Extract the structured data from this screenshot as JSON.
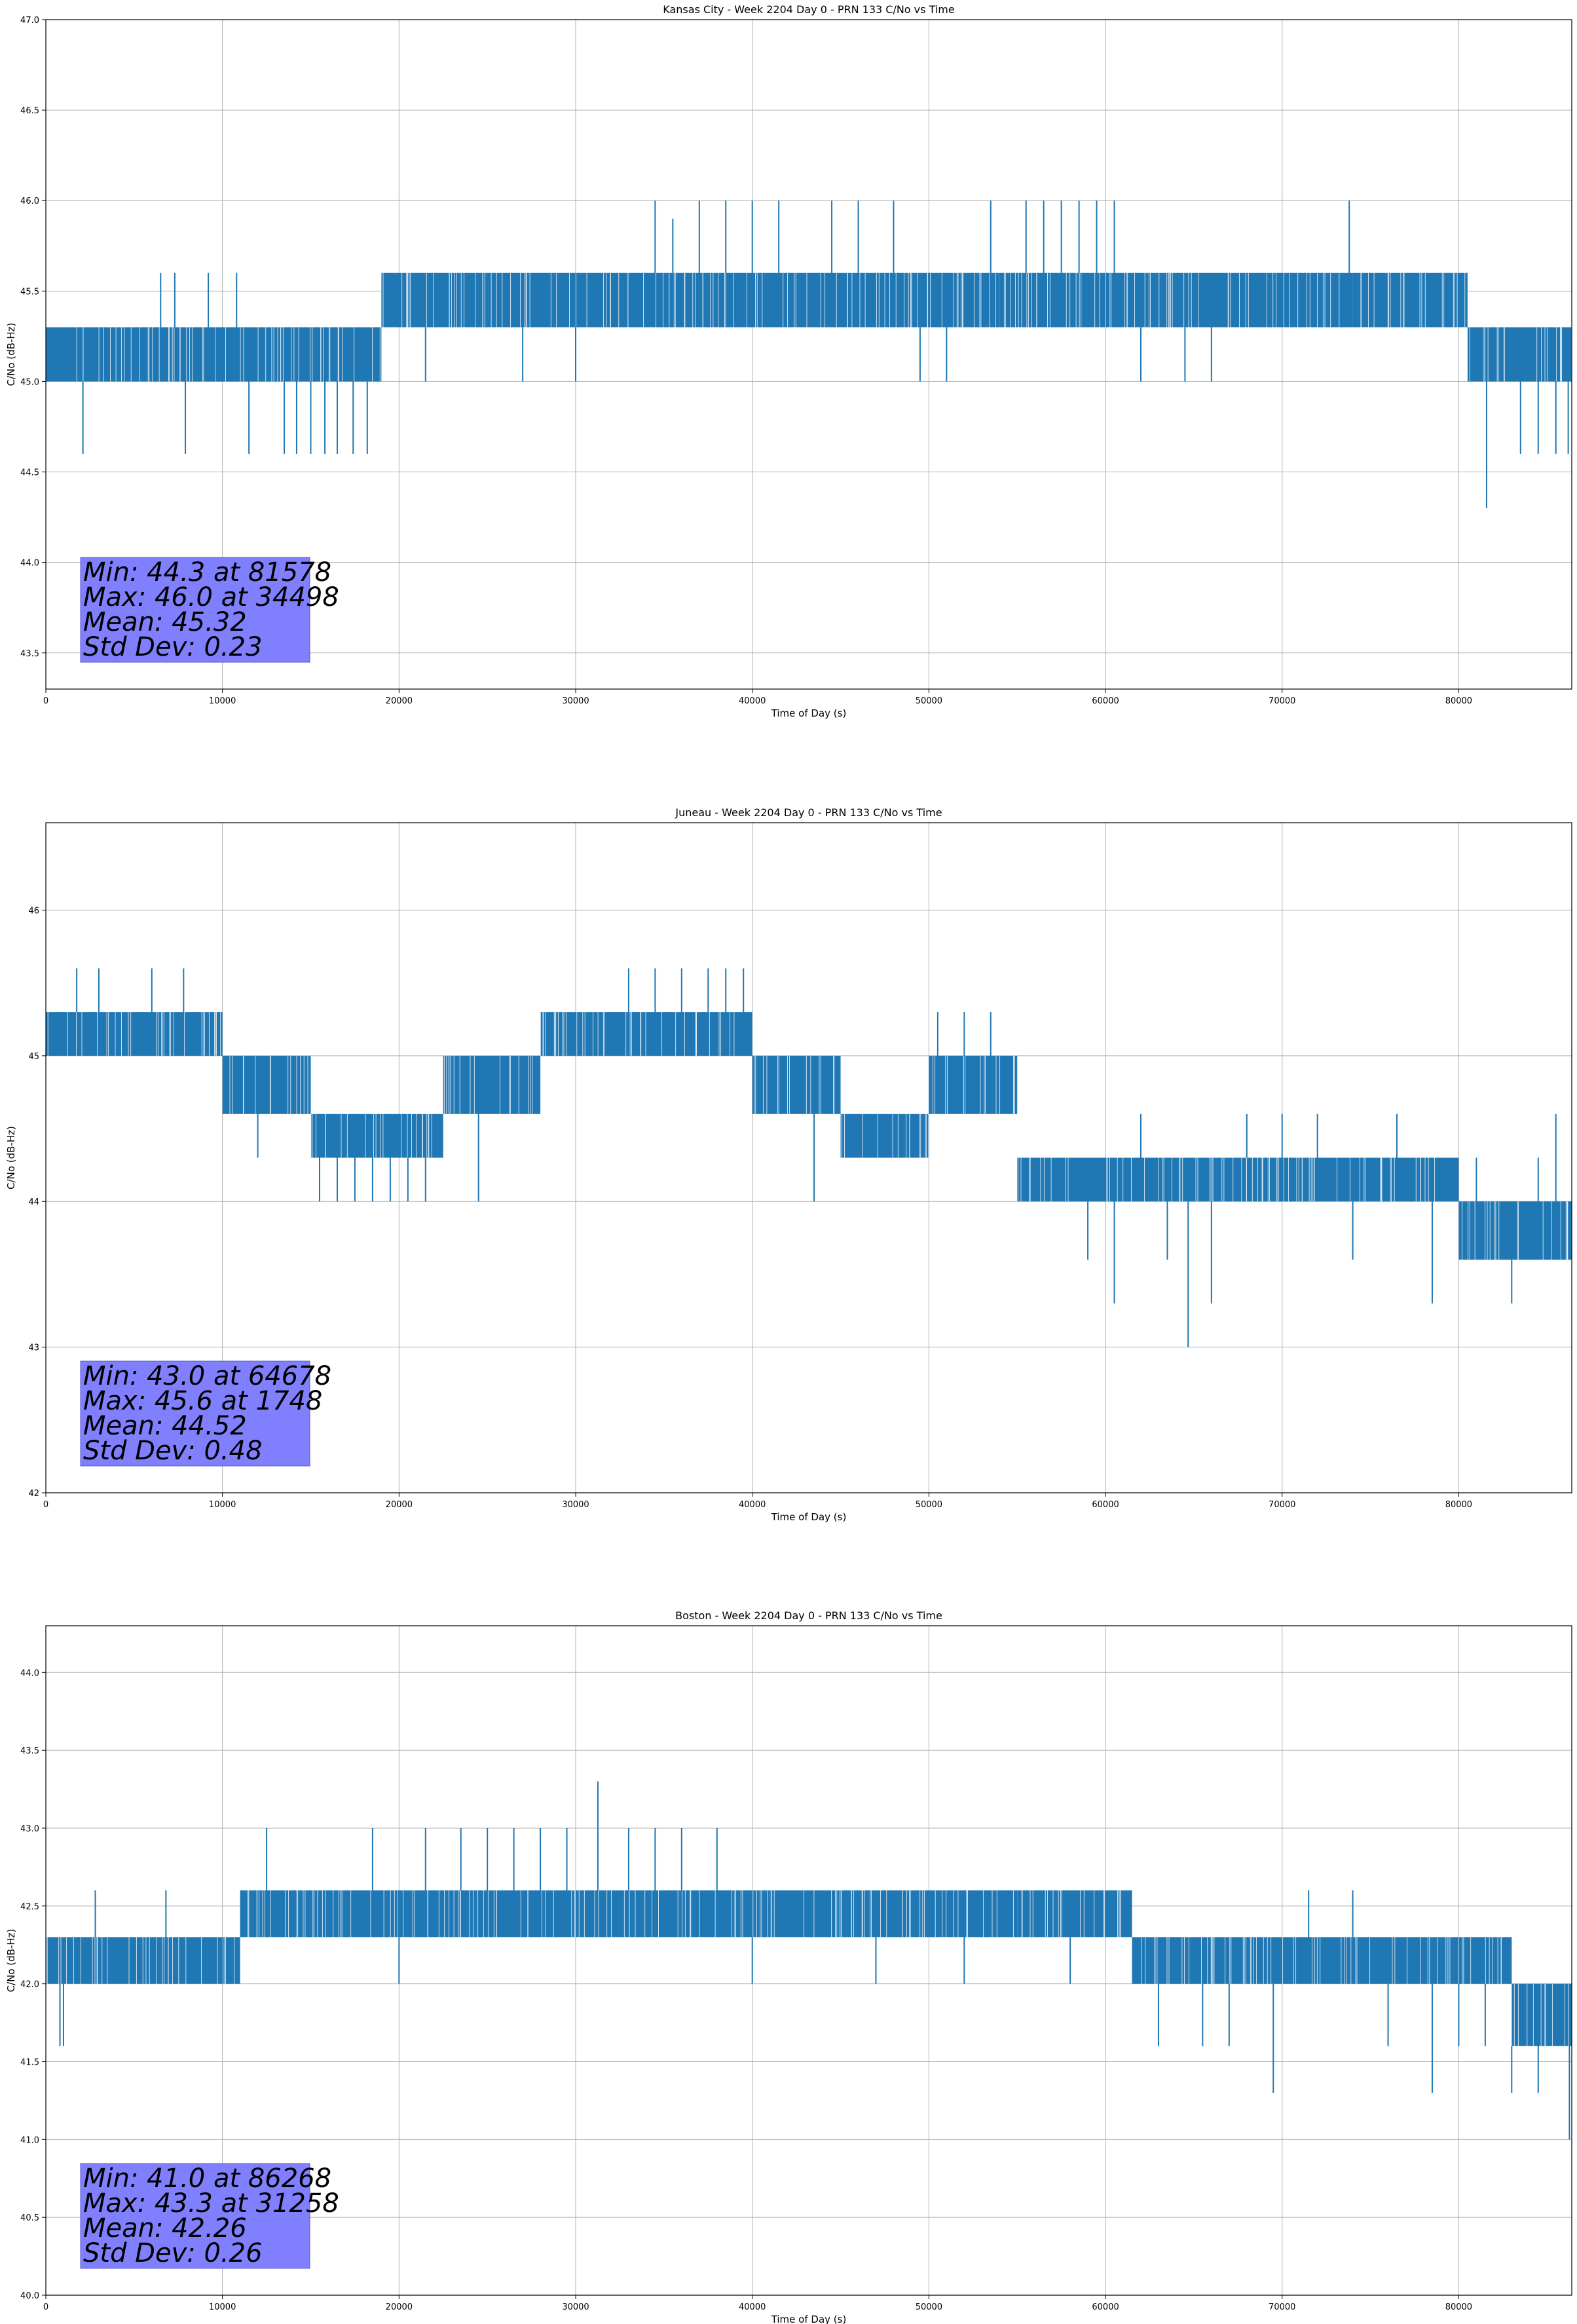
{
  "chart_data": [
    {
      "type": "line",
      "title": "Kansas City - Week 2204 Day 0 - PRN 133 C/No vs Time",
      "xlabel": "Time of Day (s)",
      "ylabel": "C/No (dB-Hz)",
      "xlim": [
        0,
        86400
      ],
      "ylim": [
        43.3,
        47.0
      ],
      "xticks": [
        0,
        10000,
        20000,
        30000,
        40000,
        50000,
        60000,
        70000,
        80000
      ],
      "yticks": [
        43.5,
        44.0,
        44.5,
        45.0,
        45.5,
        46.0,
        46.5,
        47.0
      ],
      "ytick_decimals": 1,
      "grid": true,
      "series": [
        {
          "color": "#1f77b4",
          "segments": [
            {
              "start": 0,
              "end": 19000,
              "lo": 45.0,
              "hi": 45.3
            },
            {
              "start": 19000,
              "end": 31000,
              "lo": 45.3,
              "hi": 45.6
            },
            {
              "start": 31000,
              "end": 54000,
              "lo": 45.3,
              "hi": 45.6
            },
            {
              "start": 54000,
              "end": 74000,
              "lo": 45.3,
              "hi": 45.6
            },
            {
              "start": 74000,
              "end": 80500,
              "lo": 45.3,
              "hi": 45.6
            },
            {
              "start": 80500,
              "end": 86400,
              "lo": 45.0,
              "hi": 45.3
            }
          ],
          "spikes": [
            [
              2100,
              44.6
            ],
            [
              6500,
              45.6
            ],
            [
              7300,
              45.6
            ],
            [
              7900,
              44.6
            ],
            [
              9200,
              45.6
            ],
            [
              10800,
              45.6
            ],
            [
              11500,
              44.6
            ],
            [
              13500,
              44.6
            ],
            [
              14200,
              44.6
            ],
            [
              15000,
              44.6
            ],
            [
              15800,
              44.6
            ],
            [
              16500,
              44.6
            ],
            [
              17400,
              44.6
            ],
            [
              18200,
              44.6
            ],
            [
              19500,
              45.6
            ],
            [
              21500,
              45.0
            ],
            [
              27000,
              45.0
            ],
            [
              30000,
              45.0
            ],
            [
              34498,
              46.0
            ],
            [
              35500,
              45.9
            ],
            [
              37000,
              46.0
            ],
            [
              38500,
              46.0
            ],
            [
              40000,
              46.0
            ],
            [
              41500,
              46.0
            ],
            [
              44500,
              46.0
            ],
            [
              46000,
              46.0
            ],
            [
              48000,
              46.0
            ],
            [
              49500,
              45.0
            ],
            [
              51000,
              45.0
            ],
            [
              53500,
              46.0
            ],
            [
              55500,
              46.0
            ],
            [
              56500,
              46.0
            ],
            [
              57500,
              46.0
            ],
            [
              58500,
              46.0
            ],
            [
              59500,
              46.0
            ],
            [
              60500,
              46.0
            ],
            [
              62000,
              45.0
            ],
            [
              64500,
              45.0
            ],
            [
              66000,
              45.0
            ],
            [
              73800,
              46.0
            ],
            [
              78500,
              45.6
            ],
            [
              81578,
              44.3
            ],
            [
              83500,
              44.6
            ],
            [
              84500,
              44.6
            ],
            [
              85500,
              44.6
            ],
            [
              86200,
              44.6
            ]
          ]
        }
      ],
      "stats": [
        "Min: 44.3 at 81578",
        "Max: 46.0 at 34498",
        "Mean: 45.32",
        "Std Dev: 0.23"
      ],
      "stats_box_color": "#8080ff"
    },
    {
      "type": "line",
      "title": "Juneau - Week 2204 Day 0 - PRN 133 C/No vs Time",
      "xlabel": "Time of Day (s)",
      "ylabel": "C/No (dB-Hz)",
      "xlim": [
        0,
        86400
      ],
      "ylim": [
        42.0,
        46.6
      ],
      "xticks": [
        0,
        10000,
        20000,
        30000,
        40000,
        50000,
        60000,
        70000,
        80000
      ],
      "yticks": [
        42,
        43,
        44,
        45,
        46
      ],
      "ytick_decimals": 0,
      "grid": true,
      "series": [
        {
          "color": "#1f77b4",
          "segments": [
            {
              "start": 0,
              "end": 10000,
              "lo": 45.0,
              "hi": 45.3
            },
            {
              "start": 10000,
              "end": 15000,
              "lo": 44.6,
              "hi": 45.0
            },
            {
              "start": 15000,
              "end": 22500,
              "lo": 44.3,
              "hi": 44.6
            },
            {
              "start": 22500,
              "end": 28000,
              "lo": 44.6,
              "hi": 45.0
            },
            {
              "start": 28000,
              "end": 40000,
              "lo": 45.0,
              "hi": 45.3
            },
            {
              "start": 40000,
              "end": 45000,
              "lo": 44.6,
              "hi": 45.0
            },
            {
              "start": 45000,
              "end": 50000,
              "lo": 44.3,
              "hi": 44.6
            },
            {
              "start": 50000,
              "end": 55000,
              "lo": 44.6,
              "hi": 45.0
            },
            {
              "start": 55000,
              "end": 80000,
              "lo": 44.0,
              "hi": 44.3
            },
            {
              "start": 80000,
              "end": 86400,
              "lo": 43.6,
              "hi": 44.0
            }
          ],
          "spikes": [
            [
              1748,
              45.6
            ],
            [
              3000,
              45.6
            ],
            [
              6000,
              45.6
            ],
            [
              7800,
              45.6
            ],
            [
              12000,
              44.3
            ],
            [
              15500,
              44.0
            ],
            [
              16500,
              44.0
            ],
            [
              17500,
              44.0
            ],
            [
              18500,
              44.0
            ],
            [
              19500,
              44.0
            ],
            [
              20500,
              44.0
            ],
            [
              21500,
              44.0
            ],
            [
              24500,
              44.0
            ],
            [
              33000,
              45.6
            ],
            [
              34500,
              45.6
            ],
            [
              36000,
              45.6
            ],
            [
              37500,
              45.6
            ],
            [
              38500,
              45.6
            ],
            [
              39500,
              45.6
            ],
            [
              43500,
              44.0
            ],
            [
              50500,
              45.3
            ],
            [
              52000,
              45.3
            ],
            [
              53500,
              45.3
            ],
            [
              59000,
              43.6
            ],
            [
              60500,
              43.3
            ],
            [
              62000,
              44.6
            ],
            [
              63500,
              43.6
            ],
            [
              64678,
              43.0
            ],
            [
              66000,
              43.3
            ],
            [
              68000,
              44.6
            ],
            [
              70000,
              44.6
            ],
            [
              72000,
              44.6
            ],
            [
              74000,
              43.6
            ],
            [
              76500,
              44.6
            ],
            [
              78500,
              43.3
            ],
            [
              81000,
              44.3
            ],
            [
              83000,
              43.3
            ],
            [
              84500,
              44.3
            ],
            [
              85500,
              44.6
            ]
          ]
        }
      ],
      "stats": [
        "Min: 43.0 at 64678",
        "Max: 45.6 at 1748",
        "Mean: 44.52",
        "Std Dev: 0.48"
      ],
      "stats_box_color": "#8080ff"
    },
    {
      "type": "line",
      "title": "Boston - Week 2204 Day 0 - PRN 133 C/No vs Time",
      "xlabel": "Time of Day (s)",
      "ylabel": "C/No (dB-Hz)",
      "xlim": [
        0,
        86400
      ],
      "ylim": [
        40.0,
        44.3
      ],
      "xticks": [
        0,
        10000,
        20000,
        30000,
        40000,
        50000,
        60000,
        70000,
        80000
      ],
      "yticks": [
        40.0,
        40.5,
        41.0,
        41.5,
        42.0,
        42.5,
        43.0,
        43.5,
        44.0
      ],
      "ytick_decimals": 1,
      "grid": true,
      "series": [
        {
          "color": "#1f77b4",
          "segments": [
            {
              "start": 0,
              "end": 11000,
              "lo": 42.0,
              "hi": 42.3
            },
            {
              "start": 11000,
              "end": 41000,
              "lo": 42.3,
              "hi": 42.6
            },
            {
              "start": 41000,
              "end": 55000,
              "lo": 42.3,
              "hi": 42.6
            },
            {
              "start": 55000,
              "end": 61500,
              "lo": 42.3,
              "hi": 42.6
            },
            {
              "start": 61500,
              "end": 66000,
              "lo": 42.0,
              "hi": 42.3
            },
            {
              "start": 66000,
              "end": 83000,
              "lo": 42.0,
              "hi": 42.3
            },
            {
              "start": 83000,
              "end": 86400,
              "lo": 41.6,
              "hi": 42.0
            }
          ],
          "spikes": [
            [
              800,
              41.6
            ],
            [
              1000,
              41.6
            ],
            [
              2800,
              42.6
            ],
            [
              6800,
              42.6
            ],
            [
              12500,
              43.0
            ],
            [
              18500,
              43.0
            ],
            [
              20000,
              42.0
            ],
            [
              21500,
              43.0
            ],
            [
              23500,
              43.0
            ],
            [
              25000,
              43.0
            ],
            [
              26500,
              43.0
            ],
            [
              28000,
              43.0
            ],
            [
              29500,
              43.0
            ],
            [
              31258,
              43.3
            ],
            [
              33000,
              43.0
            ],
            [
              34500,
              43.0
            ],
            [
              36000,
              43.0
            ],
            [
              38000,
              43.0
            ],
            [
              40000,
              42.0
            ],
            [
              47000,
              42.0
            ],
            [
              52000,
              42.0
            ],
            [
              58000,
              42.0
            ],
            [
              63000,
              41.6
            ],
            [
              65500,
              41.6
            ],
            [
              67000,
              41.6
            ],
            [
              69500,
              41.3
            ],
            [
              71500,
              42.6
            ],
            [
              74000,
              42.6
            ],
            [
              76000,
              41.6
            ],
            [
              78500,
              41.3
            ],
            [
              80000,
              41.6
            ],
            [
              81500,
              41.6
            ],
            [
              83000,
              41.3
            ],
            [
              84500,
              41.3
            ],
            [
              86268,
              41.0
            ]
          ]
        }
      ],
      "stats": [
        "Min: 41.0 at 86268",
        "Max: 43.3 at 31258",
        "Mean: 42.26",
        "Std Dev: 0.26"
      ],
      "stats_box_color": "#8080ff"
    }
  ]
}
